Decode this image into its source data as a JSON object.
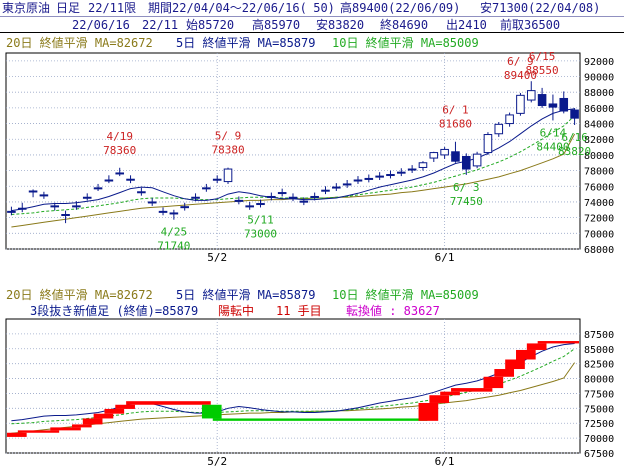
{
  "header": {
    "line1": {
      "symbol": "東京原油",
      "period": "日足",
      "contract": "22/11限",
      "range": "期間22/04/04～22/06/16(",
      "count": " 50)",
      "high": "高89400(22/06/09)",
      "low": "安71300(22/04/08)"
    },
    "line2": {
      "date": "22/06/16",
      "contract": "22/11",
      "open": "始85720",
      "high": "高85970",
      "low": "安83820",
      "close": "終84690",
      "volume": "出2410",
      "prev": "前取36500"
    }
  },
  "upper_legend": {
    "ma20": "20日 終値平滑 MA=82672",
    "ma5": "5日 終値平滑 MA=85879",
    "ma10": "10日 終値平滑 MA=85009"
  },
  "lower_legend": {
    "ma20": "20日 終値平滑 MA=82672",
    "ma5": "5日 終値平滑 MA=85879",
    "ma10": "10日 終値平滑 MA=85009",
    "break_label": "3段抜き新値足 (終値)=85879",
    "trend": "陽転中",
    "count": "11 手目",
    "reversal": "転換値 : 83627"
  },
  "colors": {
    "up_body": "#ffffff",
    "down_body": "#0a1a8c",
    "ma5": "#0a1a8c",
    "ma10": "#22aa22",
    "ma20": "#8a7a1a",
    "high_label": "#cc2222",
    "low_label": "#22aa22",
    "break_up": "#ff0000",
    "break_down": "#00cc00"
  },
  "chart_data": [
    {
      "type": "candlestick",
      "x_ticks": [
        {
          "index": 19,
          "label": "5/2"
        },
        {
          "index": 40,
          "label": "6/1"
        }
      ],
      "ylim": [
        68000,
        93000
      ],
      "y_ticks": [
        68000,
        70000,
        72000,
        74000,
        76000,
        78000,
        80000,
        82000,
        84000,
        86000,
        88000,
        90000,
        92000
      ],
      "candles": [
        {
          "o": 72800,
          "h": 73400,
          "l": 72300,
          "c": 72700
        },
        {
          "o": 73200,
          "h": 73900,
          "l": 72700,
          "c": 73100
        },
        {
          "o": 75400,
          "h": 75600,
          "l": 74600,
          "c": 75300
        },
        {
          "o": 74900,
          "h": 75300,
          "l": 74400,
          "c": 74800
        },
        {
          "o": 73500,
          "h": 73900,
          "l": 72900,
          "c": 73400
        },
        {
          "o": 72400,
          "h": 72900,
          "l": 71300,
          "c": 72300
        },
        {
          "o": 73500,
          "h": 74100,
          "l": 73000,
          "c": 73400
        },
        {
          "o": 74600,
          "h": 75100,
          "l": 74200,
          "c": 74500
        },
        {
          "o": 75800,
          "h": 76300,
          "l": 75400,
          "c": 75700
        },
        {
          "o": 76800,
          "h": 77400,
          "l": 76400,
          "c": 76700
        },
        {
          "o": 77700,
          "h": 78360,
          "l": 77300,
          "c": 77600
        },
        {
          "o": 76900,
          "h": 77400,
          "l": 76400,
          "c": 76800
        },
        {
          "o": 75300,
          "h": 75800,
          "l": 74800,
          "c": 75200
        },
        {
          "o": 74000,
          "h": 74500,
          "l": 73500,
          "c": 73900
        },
        {
          "o": 72800,
          "h": 73300,
          "l": 72300,
          "c": 72700
        },
        {
          "o": 72600,
          "h": 73000,
          "l": 71740,
          "c": 72500
        },
        {
          "o": 73400,
          "h": 73900,
          "l": 72900,
          "c": 73300
        },
        {
          "o": 74600,
          "h": 75100,
          "l": 74100,
          "c": 74500
        },
        {
          "o": 75800,
          "h": 76300,
          "l": 75300,
          "c": 75700
        },
        {
          "o": 76900,
          "h": 77400,
          "l": 76400,
          "c": 76800
        },
        {
          "o": 76600,
          "h": 78380,
          "l": 76300,
          "c": 78200
        },
        {
          "o": 74200,
          "h": 74700,
          "l": 73700,
          "c": 74100
        },
        {
          "o": 73500,
          "h": 74000,
          "l": 73000,
          "c": 73400
        },
        {
          "o": 73800,
          "h": 74300,
          "l": 73300,
          "c": 73700
        },
        {
          "o": 74700,
          "h": 75200,
          "l": 74200,
          "c": 74600
        },
        {
          "o": 75200,
          "h": 75700,
          "l": 74700,
          "c": 75100
        },
        {
          "o": 74600,
          "h": 75100,
          "l": 74100,
          "c": 74500
        },
        {
          "o": 74100,
          "h": 74600,
          "l": 73600,
          "c": 74000
        },
        {
          "o": 74700,
          "h": 75200,
          "l": 74200,
          "c": 74600
        },
        {
          "o": 75500,
          "h": 76000,
          "l": 75000,
          "c": 75400
        },
        {
          "o": 75900,
          "h": 76400,
          "l": 75400,
          "c": 75800
        },
        {
          "o": 76300,
          "h": 76800,
          "l": 75800,
          "c": 76200
        },
        {
          "o": 76800,
          "h": 77300,
          "l": 76300,
          "c": 76700
        },
        {
          "o": 77000,
          "h": 77500,
          "l": 76500,
          "c": 76900
        },
        {
          "o": 77300,
          "h": 77800,
          "l": 76800,
          "c": 77200
        },
        {
          "o": 77500,
          "h": 78000,
          "l": 77000,
          "c": 77400
        },
        {
          "o": 77800,
          "h": 78300,
          "l": 77300,
          "c": 77700
        },
        {
          "o": 78200,
          "h": 78700,
          "l": 77700,
          "c": 78100
        },
        {
          "o": 78400,
          "h": 79200,
          "l": 78000,
          "c": 79000
        },
        {
          "o": 79600,
          "h": 80400,
          "l": 79100,
          "c": 80300
        },
        {
          "o": 80000,
          "h": 81000,
          "l": 79500,
          "c": 80700
        },
        {
          "o": 80400,
          "h": 81680,
          "l": 79000,
          "c": 79200
        },
        {
          "o": 79800,
          "h": 80200,
          "l": 77450,
          "c": 78200
        },
        {
          "o": 78600,
          "h": 80400,
          "l": 78300,
          "c": 80100
        },
        {
          "o": 80300,
          "h": 82900,
          "l": 80000,
          "c": 82600
        },
        {
          "o": 82700,
          "h": 84200,
          "l": 82300,
          "c": 83900
        },
        {
          "o": 84000,
          "h": 85400,
          "l": 83600,
          "c": 85100
        },
        {
          "o": 85300,
          "h": 87900,
          "l": 85000,
          "c": 87600
        },
        {
          "o": 87000,
          "h": 89400,
          "l": 86700,
          "c": 88200
        },
        {
          "o": 87700,
          "h": 88550,
          "l": 86000,
          "c": 86300
        },
        {
          "o": 86500,
          "h": 87700,
          "l": 84400,
          "c": 86100
        },
        {
          "o": 87200,
          "h": 88100,
          "l": 85300,
          "c": 85600
        },
        {
          "o": 85720,
          "h": 85970,
          "l": 83820,
          "c": 84690
        }
      ],
      "ma5": [
        72900,
        73100,
        73400,
        73700,
        73800,
        73800,
        73900,
        74100,
        74300,
        74700,
        75200,
        75700,
        75900,
        75800,
        75300,
        74800,
        74400,
        74200,
        74200,
        74400,
        75000,
        75300,
        75100,
        74800,
        74600,
        74400,
        74400,
        74300,
        74300,
        74400,
        74500,
        74800,
        75100,
        75500,
        75900,
        76200,
        76500,
        76800,
        77200,
        77700,
        78300,
        78900,
        79200,
        79600,
        80200,
        80900,
        81700,
        82700,
        83700,
        84600,
        85300,
        85700,
        85879
      ],
      "ma10": [
        72400,
        72500,
        72600,
        72800,
        72900,
        73000,
        73100,
        73300,
        73500,
        73700,
        73900,
        74200,
        74400,
        74500,
        74500,
        74500,
        74400,
        74300,
        74300,
        74300,
        74400,
        74500,
        74600,
        74600,
        74600,
        74500,
        74500,
        74500,
        74500,
        74500,
        74600,
        74700,
        74900,
        75100,
        75300,
        75500,
        75700,
        75900,
        76200,
        76500,
        76900,
        77300,
        77700,
        78100,
        78600,
        79100,
        79700,
        80400,
        81200,
        82000,
        82900,
        83700,
        85009
      ],
      "ma20": [
        70800,
        71000,
        71200,
        71400,
        71600,
        71800,
        72000,
        72200,
        72400,
        72600,
        72800,
        73000,
        73200,
        73300,
        73400,
        73500,
        73600,
        73700,
        73800,
        73900,
        74000,
        74100,
        74200,
        74200,
        74300,
        74300,
        74400,
        74400,
        74500,
        74500,
        74600,
        74600,
        74700,
        74800,
        74900,
        75000,
        75200,
        75300,
        75500,
        75700,
        75900,
        76100,
        76300,
        76600,
        76900,
        77200,
        77600,
        78000,
        78500,
        79000,
        79500,
        80100,
        82672
      ],
      "annotations": [
        {
          "index": 10,
          "kind": "high",
          "date": "4/19",
          "value": "78360"
        },
        {
          "index": 15,
          "kind": "low",
          "date": "4/25",
          "value": "71740"
        },
        {
          "index": 20,
          "kind": "high",
          "date": "5/ 9",
          "value": "78380"
        },
        {
          "index": 23,
          "kind": "low",
          "date": "5/11",
          "value": "73000"
        },
        {
          "index": 41,
          "kind": "high",
          "date": "6/ 1",
          "value": "81680"
        },
        {
          "index": 42,
          "kind": "low",
          "date": "6/ 3",
          "value": "77450"
        },
        {
          "index": 47,
          "kind": "high",
          "date": "6/ 9",
          "value": "89400"
        },
        {
          "index": 49,
          "kind": "high",
          "date": "6/15",
          "value": "88550"
        },
        {
          "index": 50,
          "kind": "low",
          "date": "6/14",
          "value": "84400"
        },
        {
          "index": 52,
          "kind": "low",
          "date": "6/16",
          "value": "83820"
        }
      ]
    },
    {
      "type": "bar",
      "subtype": "three-line-break",
      "ylim": [
        67500,
        90000
      ],
      "y_ticks": [
        67500,
        70000,
        72500,
        75000,
        77500,
        80000,
        82500,
        85000,
        87500
      ],
      "bricks": [
        {
          "from": 0,
          "to": 1,
          "low": 70200,
          "high": 70900,
          "dir": "up"
        },
        {
          "from": 1,
          "to": 4,
          "low": 70900,
          "high": 71300,
          "dir": "up"
        },
        {
          "from": 4,
          "to": 6,
          "low": 71300,
          "high": 71800,
          "dir": "up"
        },
        {
          "from": 6,
          "to": 7,
          "low": 71800,
          "high": 72300,
          "dir": "up"
        },
        {
          "from": 7,
          "to": 8,
          "low": 72300,
          "high": 73300,
          "dir": "up"
        },
        {
          "from": 8,
          "to": 9,
          "low": 73300,
          "high": 74100,
          "dir": "up"
        },
        {
          "from": 9,
          "to": 10,
          "low": 74100,
          "high": 74900,
          "dir": "up"
        },
        {
          "from": 10,
          "to": 11,
          "low": 74900,
          "high": 75600,
          "dir": "up"
        },
        {
          "from": 11,
          "to": 18,
          "low": 75600,
          "high": 76200,
          "dir": "up"
        },
        {
          "from": 18,
          "to": 19,
          "low": 73300,
          "high": 75600,
          "dir": "down"
        },
        {
          "from": 19,
          "to": 38,
          "low": 72900,
          "high": 73300,
          "dir": "down"
        },
        {
          "from": 38,
          "to": 39,
          "low": 72900,
          "high": 75900,
          "dir": "up"
        },
        {
          "from": 39,
          "to": 40,
          "low": 75900,
          "high": 77200,
          "dir": "up"
        },
        {
          "from": 40,
          "to": 41,
          "low": 77200,
          "high": 77800,
          "dir": "up"
        },
        {
          "from": 41,
          "to": 44,
          "low": 77800,
          "high": 78400,
          "dir": "up"
        },
        {
          "from": 44,
          "to": 45,
          "low": 78400,
          "high": 80300,
          "dir": "up"
        },
        {
          "from": 45,
          "to": 46,
          "low": 80300,
          "high": 81600,
          "dir": "up"
        },
        {
          "from": 46,
          "to": 47,
          "low": 81600,
          "high": 83200,
          "dir": "up"
        },
        {
          "from": 47,
          "to": 48,
          "low": 83200,
          "high": 84800,
          "dir": "up"
        },
        {
          "from": 48,
          "to": 49,
          "low": 84800,
          "high": 85900,
          "dir": "up"
        },
        {
          "from": 49,
          "to": 52,
          "low": 85900,
          "high": 86300,
          "dir": "up"
        }
      ]
    }
  ]
}
